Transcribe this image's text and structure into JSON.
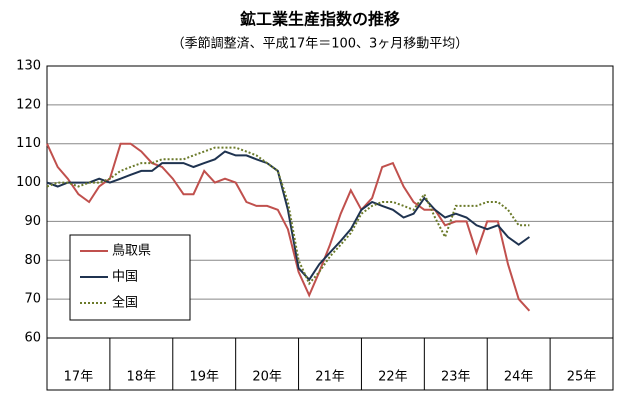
{
  "chart_data": {
    "type": "line",
    "title": "鉱工業生産指数の推移",
    "subtitle": "（季節調整済、平成17年＝100、3ヶ月移動平均）",
    "x": [
      17,
      17.17,
      17.33,
      17.5,
      17.67,
      17.83,
      18,
      18.17,
      18.33,
      18.5,
      18.67,
      18.83,
      19,
      19.17,
      19.33,
      19.5,
      19.67,
      19.83,
      20,
      20.17,
      20.33,
      20.5,
      20.67,
      20.83,
      21,
      21.17,
      21.33,
      21.5,
      21.67,
      21.83,
      22,
      22.17,
      22.33,
      22.5,
      22.67,
      22.83,
      23,
      23.17,
      23.33,
      23.5,
      23.67,
      23.83,
      24,
      24.17,
      24.33,
      24.5,
      24.67
    ],
    "series": [
      {
        "name": "鳥取県",
        "color": "#c0504d",
        "dash": false,
        "values": [
          110,
          104,
          101,
          97,
          95,
          99,
          101,
          110,
          110,
          108,
          105,
          104,
          101,
          97,
          97,
          103,
          100,
          101,
          100,
          95,
          94,
          94,
          93,
          88,
          77,
          71,
          77,
          84,
          92,
          98,
          93,
          96,
          104,
          105,
          99,
          95,
          93,
          93,
          89,
          90,
          90,
          82,
          90,
          90,
          79,
          70,
          67
        ]
      },
      {
        "name": "中国",
        "color": "#1f3350",
        "dash": false,
        "values": [
          100,
          99,
          100,
          100,
          100,
          101,
          100,
          101,
          102,
          103,
          103,
          105,
          105,
          105,
          104,
          105,
          106,
          108,
          107,
          107,
          106,
          105,
          103,
          93,
          78,
          75,
          79,
          82,
          85,
          88,
          93,
          95,
          94,
          93,
          91,
          92,
          96,
          93,
          91,
          92,
          91,
          89,
          88,
          89,
          86,
          84,
          86
        ]
      },
      {
        "name": "全国",
        "color": "#6b7a2a",
        "dash": true,
        "values": [
          99,
          100,
          100,
          99,
          100,
          100,
          101,
          103,
          104,
          105,
          105,
          106,
          106,
          106,
          107,
          108,
          109,
          109,
          109,
          108,
          107,
          105,
          103,
          95,
          80,
          74,
          77,
          81,
          84,
          87,
          92,
          94,
          95,
          95,
          94,
          93,
          97,
          91,
          86,
          94,
          94,
          94,
          95,
          95,
          93,
          89,
          89
        ]
      }
    ],
    "xlim": [
      17,
      26
    ],
    "xticks": [
      {
        "value": 17.5,
        "label": "17年"
      },
      {
        "value": 18.5,
        "label": "18年"
      },
      {
        "value": 19.5,
        "label": "19年"
      },
      {
        "value": 20.5,
        "label": "20年"
      },
      {
        "value": 21.5,
        "label": "21年"
      },
      {
        "value": 22.5,
        "label": "22年"
      },
      {
        "value": 23.5,
        "label": "23年"
      },
      {
        "value": 24.5,
        "label": "24年"
      },
      {
        "value": 25.5,
        "label": "25年"
      }
    ],
    "ylim": [
      60,
      130
    ],
    "yticks": [
      60,
      70,
      80,
      90,
      100,
      110,
      120,
      130
    ],
    "grid": true,
    "legend": "lower left"
  }
}
